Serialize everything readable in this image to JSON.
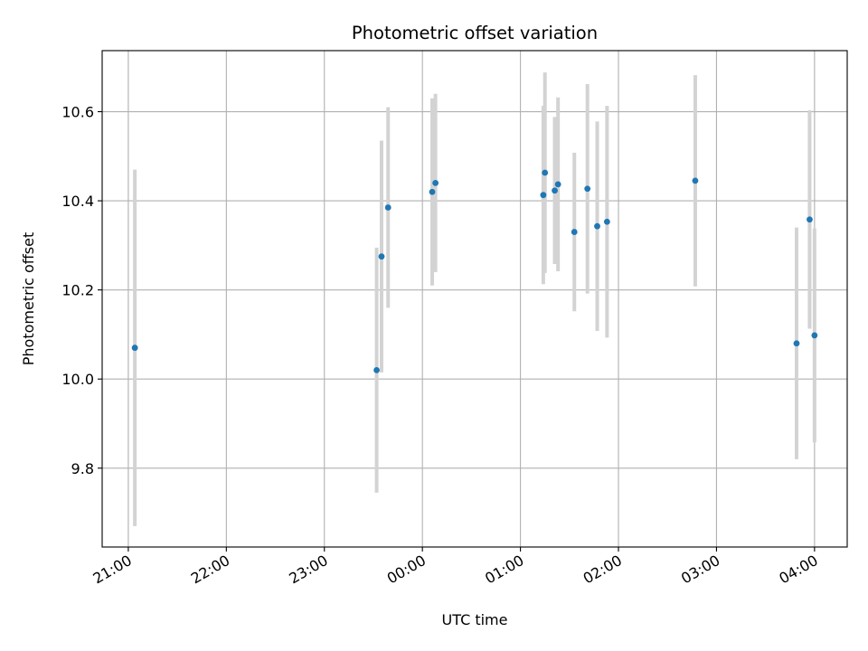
{
  "chart_data": {
    "type": "scatter",
    "title": "Photometric offset variation",
    "xlabel": "UTC time",
    "ylabel": "Photometric offset",
    "x_ticks": [
      "21:00",
      "22:00",
      "23:00",
      "00:00",
      "01:00",
      "02:00",
      "03:00",
      "04:00"
    ],
    "y_ticks": [
      "9.8",
      "10.0",
      "10.2",
      "10.4",
      "10.6"
    ],
    "y_tick_values": [
      9.8,
      10.0,
      10.2,
      10.4,
      10.6
    ],
    "xlim": [
      "20:44",
      "04:20"
    ],
    "ylim": [
      9.623,
      10.737
    ],
    "grid": true,
    "colors": {
      "marker": "#1f77b4",
      "errorbar": "#d3d3d3",
      "grid": "#b0b0b0"
    },
    "points": [
      {
        "time": "21:04",
        "y": 10.07,
        "err": 0.4
      },
      {
        "time": "23:32",
        "y": 10.02,
        "err": 0.275
      },
      {
        "time": "23:35",
        "y": 10.275,
        "err": 0.26
      },
      {
        "time": "23:39",
        "y": 10.385,
        "err": 0.225
      },
      {
        "time": "00:06",
        "y": 10.42,
        "err": 0.21
      },
      {
        "time": "00:08",
        "y": 10.44,
        "err": 0.2
      },
      {
        "time": "01:14",
        "y": 10.413,
        "err": 0.2
      },
      {
        "time": "01:15",
        "y": 10.463,
        "err": 0.225
      },
      {
        "time": "01:21",
        "y": 10.423,
        "err": 0.165
      },
      {
        "time": "01:23",
        "y": 10.437,
        "err": 0.195
      },
      {
        "time": "01:33",
        "y": 10.33,
        "err": 0.178
      },
      {
        "time": "01:41",
        "y": 10.427,
        "err": 0.235
      },
      {
        "time": "01:47",
        "y": 10.343,
        "err": 0.235
      },
      {
        "time": "01:53",
        "y": 10.353,
        "err": 0.26
      },
      {
        "time": "02:47",
        "y": 10.445,
        "err": 0.237
      },
      {
        "time": "03:49",
        "y": 10.08,
        "err": 0.26
      },
      {
        "time": "03:57",
        "y": 10.358,
        "err": 0.245
      },
      {
        "time": "04:00",
        "y": 10.098,
        "err": 0.24
      }
    ]
  }
}
